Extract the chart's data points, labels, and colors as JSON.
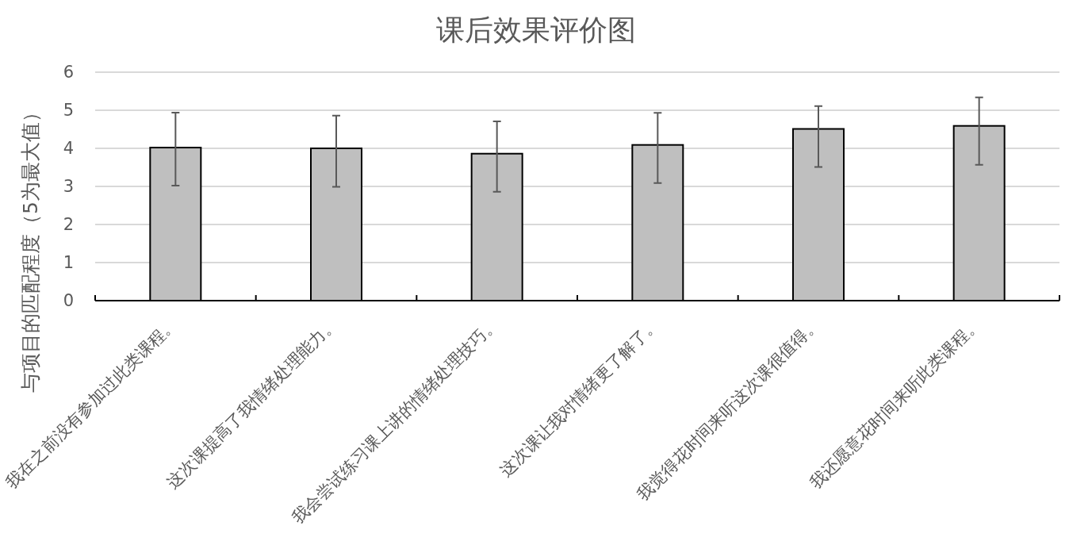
{
  "chart_data": {
    "type": "bar",
    "title": "课后效果评价图",
    "ylabel": "与项目的匹配程度（5为最大值）",
    "categories": [
      "我在之前没有参加过此类课程。",
      "这次课提高了我情绪处理能力。",
      "我会尝试练习课上讲的情绪处理技巧。",
      "这次课让我对情绪更了解了。",
      "我觉得花时间来听这次课很值得。",
      "我还愿意花时间来听此类课程。"
    ],
    "values": [
      4.02,
      4.0,
      3.86,
      4.09,
      4.51,
      4.59
    ],
    "errors": [
      [
        3.02,
        4.94
      ],
      [
        2.99,
        4.86
      ],
      [
        2.86,
        4.71
      ],
      [
        3.09,
        4.93
      ],
      [
        3.51,
        5.11
      ],
      [
        3.57,
        5.34
      ]
    ],
    "color": "#bfbfbf",
    "ylim": [
      0,
      6
    ],
    "yticks": [
      0,
      1,
      2,
      3,
      4,
      5,
      6
    ],
    "grid": "y"
  }
}
